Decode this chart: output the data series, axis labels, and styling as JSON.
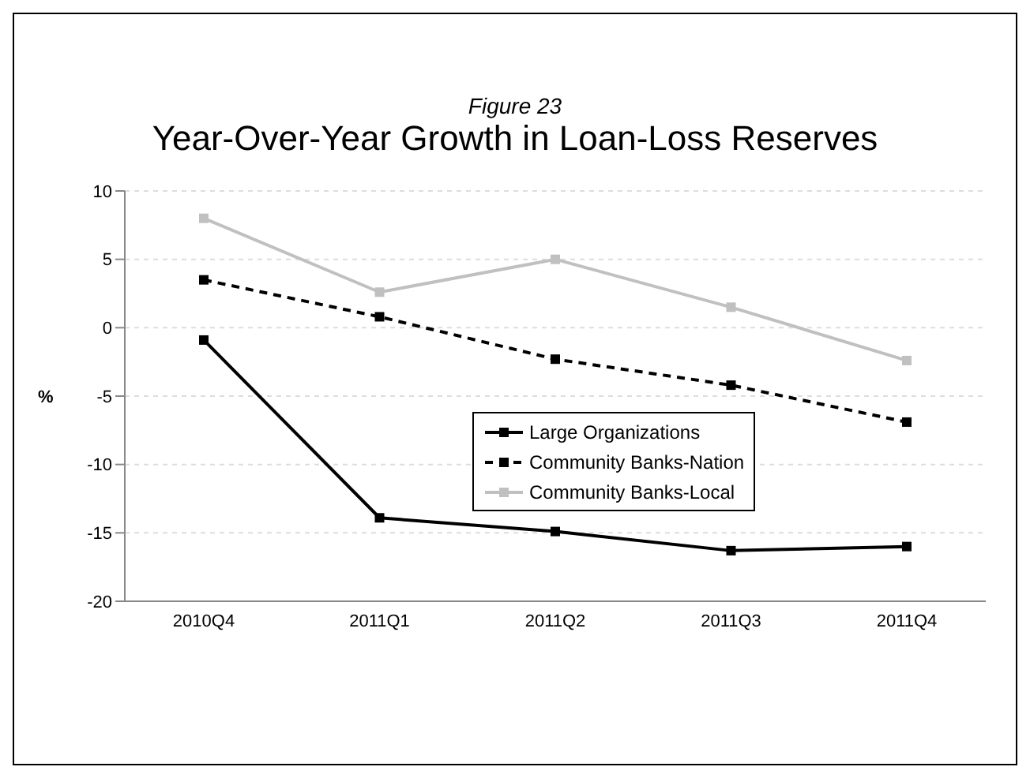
{
  "chart_data": {
    "type": "line",
    "subtitle": "Figure 23",
    "title": "Year-Over-Year Growth in Loan-Loss Reserves",
    "ylabel": "%",
    "categories": [
      "2010Q4",
      "2011Q1",
      "2011Q2",
      "2011Q3",
      "2011Q4"
    ],
    "series": [
      {
        "name": "Large Organizations",
        "color": "#000000",
        "line_style": "solid",
        "values": [
          -0.9,
          -13.9,
          -14.9,
          -16.3,
          -16.0
        ]
      },
      {
        "name": "Community Banks-Nation",
        "color": "#000000",
        "line_style": "dashed",
        "values": [
          3.5,
          0.8,
          -2.3,
          -4.2,
          -6.9
        ]
      },
      {
        "name": "Community Banks-Local",
        "color": "#c0c0c0",
        "line_style": "solid",
        "values": [
          8.0,
          2.6,
          5.0,
          1.5,
          -2.4
        ]
      }
    ],
    "ylim": [
      -20,
      10
    ],
    "yticks": [
      -20,
      -15,
      -10,
      -5,
      0,
      5,
      10
    ],
    "grid": "y",
    "legend": "center",
    "marker": "square"
  }
}
